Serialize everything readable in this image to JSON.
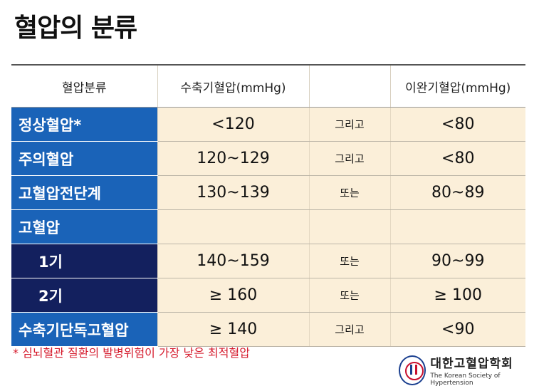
{
  "title": "혈압의 분류",
  "table": {
    "headers": [
      "혈압분류",
      "수축기혈압(mmHg)",
      "",
      "이완기혈압(mmHg)"
    ],
    "rows": [
      {
        "category": "정상혈압*",
        "systolic": "<120",
        "conj": "그리고",
        "diastolic": "<80"
      },
      {
        "category": "주의혈압",
        "systolic": "120~129",
        "conj": "그리고",
        "diastolic": "<80"
      },
      {
        "category": "고혈압전단계",
        "systolic": "130~139",
        "conj": "또는",
        "diastolic": "80~89"
      },
      {
        "category": "고혈압",
        "systolic": "",
        "conj": "",
        "diastolic": ""
      },
      {
        "category": "1기",
        "systolic": "140~159",
        "conj": "또는",
        "diastolic": "90~99"
      },
      {
        "category": "2기",
        "systolic": "≥ 160",
        "conj": "또는",
        "diastolic": "≥ 100"
      },
      {
        "category": "수축기단독고혈압",
        "systolic": "≥ 140",
        "conj": "그리고",
        "diastolic": "<90"
      }
    ]
  },
  "footnote": "* 심뇌혈관 질환의 발병위험이 가장 낮은 최적혈압",
  "logo": {
    "name_ko": "대한고혈압학회",
    "name_en": "The Korean Society of Hypertension"
  },
  "colors": {
    "category_blue": "#1a63b8",
    "category_navy": "#13205e",
    "cell_bg": "#fbefd9",
    "footnote_red": "#d5192b"
  }
}
